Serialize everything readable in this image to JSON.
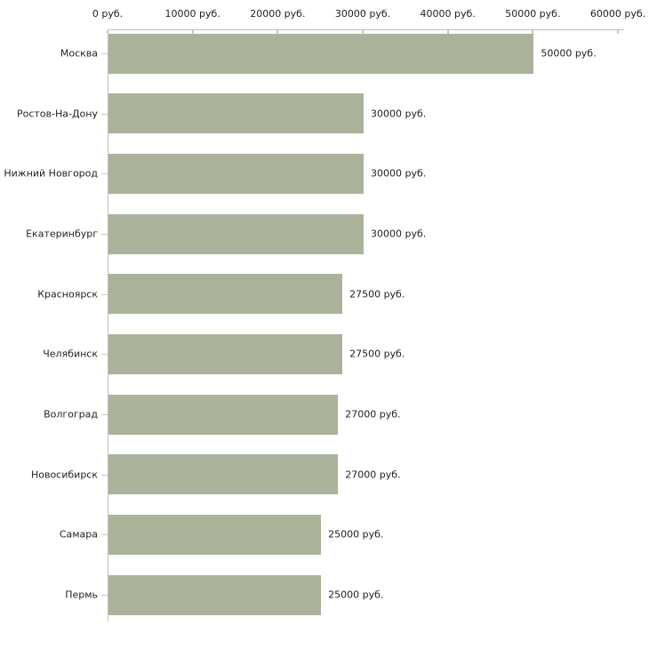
{
  "chart_data": {
    "type": "bar",
    "orientation": "horizontal",
    "title": "",
    "categories": [
      "Москва",
      "Ростов-На-Дону",
      "Нижний Новгород",
      "Екатеринбург",
      "Красноярск",
      "Челябинск",
      "Волгоград",
      "Новосибирск",
      "Самара",
      "Пермь"
    ],
    "values": [
      50000,
      30000,
      30000,
      30000,
      27500,
      27500,
      27000,
      27000,
      25000,
      25000
    ],
    "value_labels": [
      "50000 руб.",
      "30000 руб.",
      "30000 руб.",
      "30000 руб.",
      "27500 руб.",
      "27500 руб.",
      "27000 руб.",
      "27000 руб.",
      "25000 руб.",
      "25000 руб."
    ],
    "xlabel": "",
    "ylabel": "",
    "x_axis": {
      "position": "top",
      "min": 0,
      "max": 60000,
      "ticks": [
        0,
        10000,
        20000,
        30000,
        40000,
        50000,
        60000
      ],
      "tick_labels": [
        "0 руб.",
        "10000 руб.",
        "20000 руб.",
        "30000 руб.",
        "40000 руб.",
        "50000 руб.",
        "60000 руб."
      ],
      "unit": "руб."
    },
    "grid": false,
    "legend": false,
    "colors": {
      "bar": "#ABB29A",
      "axis_line": "#C0C0C0",
      "tick_mark": "#CFCBA6",
      "text": "#222222",
      "background": "#FFFFFF"
    }
  }
}
